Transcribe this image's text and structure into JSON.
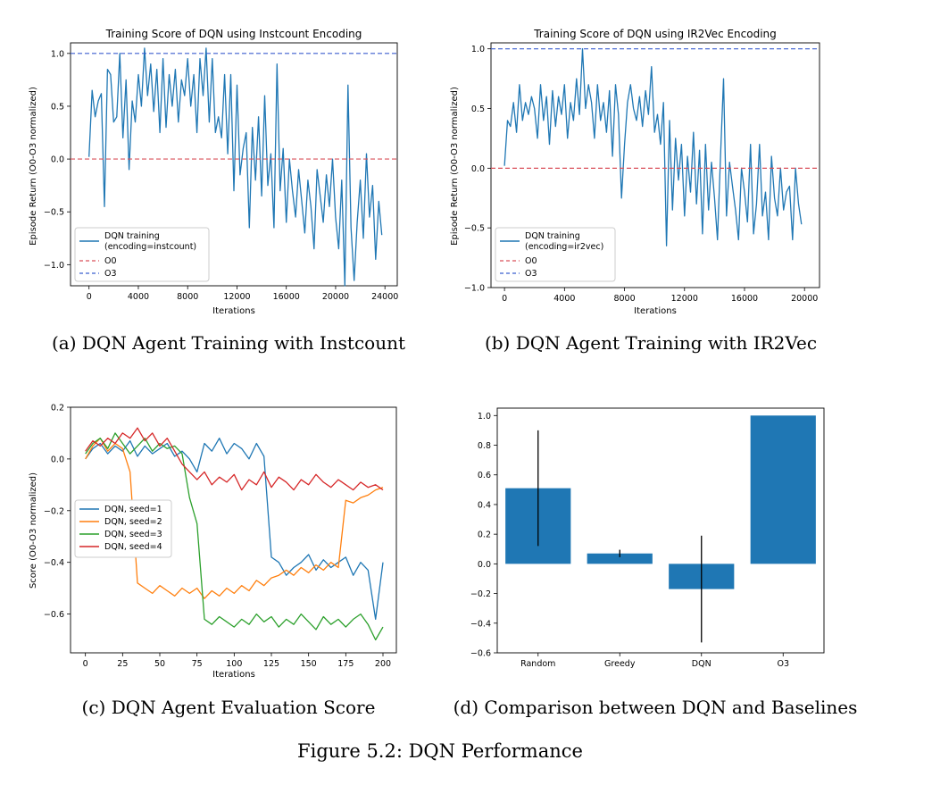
{
  "figure_caption": "Figure 5.2: DQN Performance",
  "subcaptions": {
    "a": "(a) DQN Agent Training with Instcount",
    "b": "(b) DQN Agent Training with IR2Vec",
    "c": "(c) DQN Agent Evaluation Score",
    "d": "(d) Comparison between DQN and Baselines"
  },
  "colors": {
    "blue": "#1f77b4",
    "orange": "#ff7f0e",
    "green": "#2ca02c",
    "red": "#d62728",
    "o3_line": "#3b5fcf",
    "o0_line": "#d9505a"
  },
  "chart_data": [
    {
      "id": "a",
      "type": "line",
      "title": "Training Score of DQN using Instcount Encoding",
      "xlabel": "Iterations",
      "ylabel": "Episode Return (O0-O3 normalized)",
      "xlim": [
        -1500,
        25000
      ],
      "ylim": [
        -1.2,
        1.1
      ],
      "xticks": [
        0,
        4000,
        8000,
        12000,
        16000,
        20000,
        24000
      ],
      "xtick_labels": [
        "0",
        "4000",
        "8000",
        "12000",
        "16000",
        "20000",
        "24000"
      ],
      "yticks": [
        -1.0,
        -0.5,
        0.0,
        0.5,
        1.0
      ],
      "ytick_labels": [
        "−1.0",
        "−0.5",
        "0.0",
        "0.5",
        "1.0"
      ],
      "legend_position": "lower-left",
      "series": [
        {
          "name": "DQN training\n(encoding=instcount)",
          "color": "#1f77b4",
          "style": "solid",
          "x": [
            0,
            250,
            500,
            750,
            1000,
            1250,
            1500,
            1750,
            2000,
            2250,
            2500,
            2750,
            3000,
            3250,
            3500,
            3750,
            4000,
            4250,
            4500,
            4750,
            5000,
            5250,
            5500,
            5750,
            6000,
            6250,
            6500,
            6750,
            7000,
            7250,
            7500,
            7750,
            8000,
            8250,
            8500,
            8750,
            9000,
            9250,
            9500,
            9750,
            10000,
            10250,
            10500,
            10750,
            11000,
            11250,
            11500,
            11750,
            12000,
            12250,
            12500,
            12750,
            13000,
            13250,
            13500,
            13750,
            14000,
            14250,
            14500,
            14750,
            15000,
            15250,
            15500,
            15750,
            16000,
            16250,
            16500,
            16750,
            17000,
            17250,
            17500,
            17750,
            18000,
            18250,
            18500,
            18750,
            19000,
            19250,
            19500,
            19750,
            20000,
            20250,
            20500,
            20750,
            21000,
            21250,
            21500,
            21750,
            22000,
            22250,
            22500,
            22750,
            23000,
            23250,
            23500,
            23750
          ],
          "y": [
            0.02,
            0.65,
            0.4,
            0.55,
            0.62,
            -0.45,
            0.85,
            0.8,
            0.35,
            0.4,
            1.0,
            0.2,
            0.75,
            -0.1,
            0.55,
            0.35,
            0.8,
            0.5,
            1.05,
            0.6,
            0.9,
            0.45,
            0.85,
            0.25,
            0.95,
            0.3,
            0.8,
            0.5,
            0.85,
            0.35,
            0.75,
            0.6,
            0.95,
            0.5,
            0.8,
            0.25,
            0.95,
            0.6,
            1.05,
            0.35,
            0.95,
            0.25,
            0.4,
            0.2,
            0.8,
            0.05,
            0.8,
            -0.3,
            0.7,
            -0.15,
            0.1,
            0.25,
            -0.65,
            0.3,
            -0.2,
            0.4,
            -0.35,
            0.6,
            -0.25,
            0.05,
            -0.65,
            0.9,
            -0.3,
            0.1,
            -0.6,
            0.0,
            -0.3,
            -0.55,
            -0.1,
            -0.4,
            -0.7,
            -0.2,
            -0.45,
            -0.85,
            -0.1,
            -0.35,
            -0.6,
            -0.15,
            -0.45,
            0.0,
            -0.55,
            -0.85,
            -0.2,
            -1.2,
            0.7,
            -0.65,
            -1.15,
            -0.6,
            -0.2,
            -0.75,
            0.05,
            -0.55,
            -0.25,
            -0.95,
            -0.4,
            -0.72
          ]
        },
        {
          "name": "O0",
          "color": "#d9505a",
          "style": "dashed",
          "constant": 0.0
        },
        {
          "name": "O3",
          "color": "#3b5fcf",
          "style": "dashed",
          "constant": 1.0
        }
      ]
    },
    {
      "id": "b",
      "type": "line",
      "title": "Training Score of DQN using IR2Vec Encoding",
      "xlabel": "Iterations",
      "ylabel": "Episode Return (O0-O3 normalized)",
      "xlim": [
        -900,
        21000
      ],
      "ylim": [
        -1.0,
        1.05
      ],
      "xticks": [
        0,
        4000,
        8000,
        12000,
        16000,
        20000
      ],
      "xtick_labels": [
        "0",
        "4000",
        "8000",
        "12000",
        "16000",
        "20000"
      ],
      "yticks": [
        -1.0,
        -0.5,
        0.0,
        0.5,
        1.0
      ],
      "ytick_labels": [
        "−1.0",
        "−0.5",
        "0.0",
        "0.5",
        "1.0"
      ],
      "legend_position": "lower-left",
      "series": [
        {
          "name": "DQN training\n(encoding=ir2vec)",
          "color": "#1f77b4",
          "style": "solid",
          "x": [
            0,
            200,
            400,
            600,
            800,
            1000,
            1200,
            1400,
            1600,
            1800,
            2000,
            2200,
            2400,
            2600,
            2800,
            3000,
            3200,
            3400,
            3600,
            3800,
            4000,
            4200,
            4400,
            4600,
            4800,
            5000,
            5200,
            5400,
            5600,
            5800,
            6000,
            6200,
            6400,
            6600,
            6800,
            7000,
            7200,
            7400,
            7600,
            7800,
            8000,
            8200,
            8400,
            8600,
            8800,
            9000,
            9200,
            9400,
            9600,
            9800,
            10000,
            10200,
            10400,
            10600,
            10800,
            11000,
            11200,
            11400,
            11600,
            11800,
            12000,
            12200,
            12400,
            12600,
            12800,
            13000,
            13200,
            13400,
            13600,
            13800,
            14000,
            14200,
            14400,
            14600,
            14800,
            15000,
            15200,
            15400,
            15600,
            15800,
            16000,
            16200,
            16400,
            16600,
            16800,
            17000,
            17200,
            17400,
            17600,
            17800,
            18000,
            18200,
            18400,
            18600,
            18800,
            19000,
            19200,
            19400,
            19600,
            19800
          ],
          "y": [
            0.02,
            0.4,
            0.35,
            0.55,
            0.3,
            0.7,
            0.4,
            0.55,
            0.45,
            0.6,
            0.5,
            0.25,
            0.7,
            0.4,
            0.6,
            0.2,
            0.65,
            0.35,
            0.6,
            0.45,
            0.7,
            0.25,
            0.55,
            0.4,
            0.75,
            0.45,
            1.0,
            0.5,
            0.7,
            0.55,
            0.25,
            0.7,
            0.4,
            0.55,
            0.3,
            0.65,
            0.1,
            0.7,
            0.45,
            -0.25,
            0.2,
            0.55,
            0.7,
            0.5,
            0.4,
            0.6,
            0.35,
            0.65,
            0.45,
            0.85,
            0.3,
            0.45,
            0.2,
            0.55,
            -0.65,
            0.4,
            -0.35,
            0.25,
            -0.1,
            0.2,
            -0.4,
            0.1,
            -0.2,
            0.3,
            -0.3,
            0.15,
            -0.55,
            0.2,
            -0.35,
            0.05,
            -0.25,
            -0.6,
            0.1,
            0.75,
            -0.4,
            0.05,
            -0.15,
            -0.35,
            -0.6,
            0.0,
            -0.2,
            -0.45,
            0.2,
            -0.55,
            -0.3,
            0.2,
            -0.4,
            -0.2,
            -0.6,
            0.1,
            -0.25,
            -0.4,
            0.0,
            -0.35,
            -0.2,
            -0.15,
            -0.6,
            0.0,
            -0.3,
            -0.47
          ]
        },
        {
          "name": "O0",
          "color": "#d9505a",
          "style": "dashed",
          "constant": 0.0
        },
        {
          "name": "O3",
          "color": "#3b5fcf",
          "style": "dashed",
          "constant": 1.0
        }
      ]
    },
    {
      "id": "c",
      "type": "line",
      "title": "",
      "xlabel": "Iterations",
      "ylabel": "Score (O0-O3 normalized)",
      "xlim": [
        -10,
        209
      ],
      "ylim": [
        -0.75,
        0.2
      ],
      "xticks": [
        0,
        25,
        50,
        75,
        100,
        125,
        150,
        175,
        200
      ],
      "xtick_labels": [
        "0",
        "25",
        "50",
        "75",
        "100",
        "125",
        "150",
        "175",
        "200"
      ],
      "yticks": [
        -0.6,
        -0.4,
        -0.2,
        0.0,
        0.2
      ],
      "ytick_labels": [
        "−0.6",
        "−0.4",
        "−0.2",
        "0.0",
        "0.2"
      ],
      "legend_position": "center-left",
      "series": [
        {
          "name": "DQN, seed=1",
          "color": "#1f77b4",
          "style": "solid",
          "x": [
            0,
            5,
            10,
            15,
            20,
            25,
            30,
            35,
            40,
            45,
            50,
            55,
            60,
            65,
            70,
            75,
            80,
            85,
            90,
            95,
            100,
            105,
            110,
            115,
            120,
            125,
            130,
            135,
            140,
            145,
            150,
            155,
            160,
            165,
            170,
            175,
            180,
            185,
            190,
            195,
            200
          ],
          "y": [
            0.0,
            0.04,
            0.06,
            0.02,
            0.05,
            0.03,
            0.07,
            0.01,
            0.05,
            0.02,
            0.04,
            0.06,
            0.01,
            0.03,
            0.0,
            -0.05,
            0.06,
            0.03,
            0.08,
            0.02,
            0.06,
            0.04,
            0.0,
            0.06,
            0.01,
            -0.38,
            -0.4,
            -0.45,
            -0.42,
            -0.4,
            -0.37,
            -0.43,
            -0.39,
            -0.42,
            -0.4,
            -0.38,
            -0.45,
            -0.4,
            -0.43,
            -0.62,
            -0.4
          ]
        },
        {
          "name": "DQN, seed=2",
          "color": "#ff7f0e",
          "style": "solid",
          "x": [
            0,
            5,
            10,
            15,
            20,
            25,
            30,
            35,
            40,
            45,
            50,
            55,
            60,
            65,
            70,
            75,
            80,
            85,
            90,
            95,
            100,
            105,
            110,
            115,
            120,
            125,
            130,
            135,
            140,
            145,
            150,
            155,
            160,
            165,
            170,
            175,
            180,
            185,
            190,
            195,
            200
          ],
          "y": [
            0.0,
            0.05,
            0.08,
            0.03,
            0.06,
            0.04,
            -0.05,
            -0.48,
            -0.5,
            -0.52,
            -0.49,
            -0.51,
            -0.53,
            -0.5,
            -0.52,
            -0.5,
            -0.54,
            -0.51,
            -0.53,
            -0.5,
            -0.52,
            -0.49,
            -0.51,
            -0.47,
            -0.49,
            -0.46,
            -0.45,
            -0.43,
            -0.45,
            -0.42,
            -0.44,
            -0.41,
            -0.43,
            -0.4,
            -0.42,
            -0.16,
            -0.17,
            -0.15,
            -0.14,
            -0.12,
            -0.11
          ]
        },
        {
          "name": "DQN, seed=3",
          "color": "#2ca02c",
          "style": "solid",
          "x": [
            0,
            5,
            10,
            15,
            20,
            25,
            30,
            35,
            40,
            45,
            50,
            55,
            60,
            65,
            70,
            75,
            80,
            85,
            90,
            95,
            100,
            105,
            110,
            115,
            120,
            125,
            130,
            135,
            140,
            145,
            150,
            155,
            160,
            165,
            170,
            175,
            180,
            185,
            190,
            195,
            200
          ],
          "y": [
            0.02,
            0.06,
            0.08,
            0.04,
            0.1,
            0.06,
            0.02,
            0.05,
            0.08,
            0.03,
            0.06,
            0.04,
            0.05,
            0.02,
            -0.15,
            -0.25,
            -0.62,
            -0.64,
            -0.61,
            -0.63,
            -0.65,
            -0.62,
            -0.64,
            -0.6,
            -0.63,
            -0.61,
            -0.65,
            -0.62,
            -0.64,
            -0.6,
            -0.63,
            -0.66,
            -0.61,
            -0.64,
            -0.62,
            -0.65,
            -0.62,
            -0.6,
            -0.64,
            -0.7,
            -0.65
          ]
        },
        {
          "name": "DQN, seed=4",
          "color": "#d62728",
          "style": "solid",
          "x": [
            0,
            5,
            10,
            15,
            20,
            25,
            30,
            35,
            40,
            45,
            50,
            55,
            60,
            65,
            70,
            75,
            80,
            85,
            90,
            95,
            100,
            105,
            110,
            115,
            120,
            125,
            130,
            135,
            140,
            145,
            150,
            155,
            160,
            165,
            170,
            175,
            180,
            185,
            190,
            195,
            200
          ],
          "y": [
            0.03,
            0.07,
            0.05,
            0.08,
            0.06,
            0.1,
            0.08,
            0.12,
            0.07,
            0.1,
            0.05,
            0.08,
            0.03,
            -0.02,
            -0.05,
            -0.08,
            -0.05,
            -0.1,
            -0.07,
            -0.09,
            -0.06,
            -0.12,
            -0.08,
            -0.1,
            -0.05,
            -0.11,
            -0.07,
            -0.09,
            -0.12,
            -0.08,
            -0.1,
            -0.06,
            -0.09,
            -0.11,
            -0.08,
            -0.1,
            -0.12,
            -0.09,
            -0.11,
            -0.1,
            -0.12
          ]
        }
      ]
    },
    {
      "id": "d",
      "type": "bar",
      "title": "",
      "xlabel": "",
      "ylabel": "",
      "categories": [
        "Random",
        "Greedy",
        "DQN",
        "O3"
      ],
      "values": [
        0.51,
        0.07,
        -0.17,
        1.0
      ],
      "error": [
        0.39,
        0.025,
        0.36,
        0.0
      ],
      "ylim": [
        -0.6,
        1.05
      ],
      "yticks": [
        -0.6,
        -0.4,
        -0.2,
        0.0,
        0.2,
        0.4,
        0.6,
        0.8,
        1.0
      ],
      "ytick_labels": [
        "−0.6",
        "−0.4",
        "−0.2",
        "0.0",
        "0.2",
        "0.4",
        "0.6",
        "0.8",
        "1.0"
      ],
      "color": "#1f77b4"
    }
  ]
}
